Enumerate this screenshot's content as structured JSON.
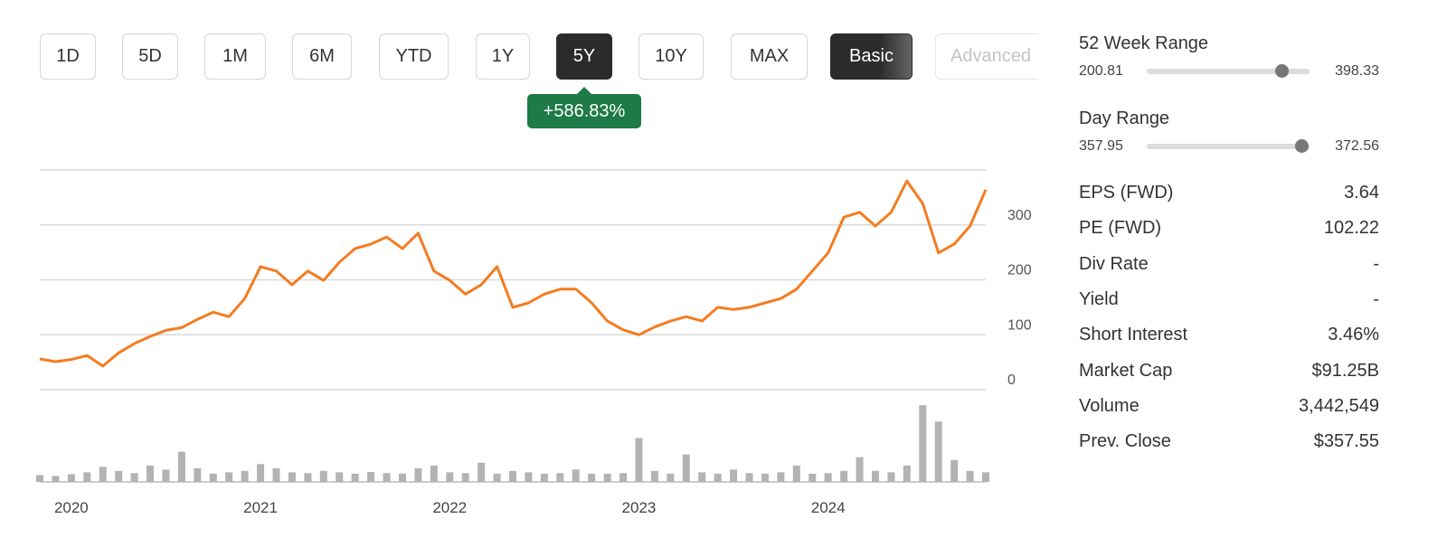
{
  "toolbar": {
    "buttons": [
      {
        "label": "1D"
      },
      {
        "label": "5D"
      },
      {
        "label": "1M"
      },
      {
        "label": "6M"
      },
      {
        "label": "YTD"
      },
      {
        "label": "1Y"
      },
      {
        "label": "5Y",
        "active": true
      },
      {
        "label": "10Y"
      },
      {
        "label": "MAX"
      },
      {
        "label": "Basic",
        "active": true
      },
      {
        "label": "Advanced",
        "disabled": true
      }
    ],
    "change_badge": "+586.83%"
  },
  "stats": {
    "ranges": [
      {
        "label": "52 Week Range",
        "low": 200.81,
        "high": 398.33,
        "marker": 364.8
      },
      {
        "label": "Day Range",
        "low": 357.95,
        "high": 372.56,
        "marker": 371.8
      }
    ],
    "rows": [
      {
        "label": "EPS (FWD)",
        "value": "3.64"
      },
      {
        "label": "PE (FWD)",
        "value": "102.22"
      },
      {
        "label": "Div Rate",
        "value": "-"
      },
      {
        "label": "Yield",
        "value": "-"
      },
      {
        "label": "Short Interest",
        "value": "3.46%"
      },
      {
        "label": "Market Cap",
        "value": "$91.25B"
      },
      {
        "label": "Volume",
        "value": "3,442,549"
      },
      {
        "label": "Prev. Close",
        "value": "$357.55"
      }
    ]
  },
  "chart_data": [
    {
      "type": "line",
      "categories": [
        null,
        null,
        "2020",
        null,
        null,
        null,
        null,
        null,
        null,
        null,
        null,
        null,
        null,
        null,
        "2021",
        null,
        null,
        null,
        null,
        null,
        null,
        null,
        null,
        null,
        null,
        null,
        "2022",
        null,
        null,
        null,
        null,
        null,
        null,
        null,
        null,
        null,
        null,
        null,
        "2023",
        null,
        null,
        null,
        null,
        null,
        null,
        null,
        null,
        null,
        null,
        null,
        "2024",
        null,
        null,
        null,
        null,
        null,
        null,
        null,
        null,
        null,
        null
      ],
      "series": [
        {
          "color": "#f47c20",
          "values": [
            56,
            51,
            55,
            62,
            43,
            67,
            84,
            97,
            108,
            113,
            128,
            141,
            133,
            166,
            224,
            216,
            191,
            216,
            199,
            232,
            257,
            265,
            278,
            257,
            285,
            216,
            199,
            174,
            191,
            224,
            150,
            158,
            174,
            183,
            183,
            158,
            125,
            109,
            100,
            114,
            125,
            133,
            125,
            150,
            146,
            150,
            158,
            166,
            183,
            216,
            249,
            314,
            323,
            298,
            323,
            380,
            339,
            249,
            265,
            298,
            364
          ]
        }
      ],
      "ylim": [
        0,
        400
      ],
      "yticks": [
        0,
        100,
        200,
        300
      ],
      "grid": true
    },
    {
      "type": "bar",
      "color": "#b3b3b3",
      "ylim": [
        0,
        30
      ],
      "values": [
        2.5,
        2.2,
        2.8,
        3.5,
        5.5,
        4,
        3.2,
        6,
        4.5,
        11,
        5,
        3,
        3.5,
        4,
        6.5,
        5,
        3.5,
        3.2,
        4,
        3.5,
        3,
        3.6,
        3.2,
        3,
        5,
        6,
        3.5,
        3.2,
        7,
        3,
        4,
        3.5,
        3,
        3.2,
        4.5,
        3,
        3,
        3.2,
        16,
        4,
        3,
        10,
        3.5,
        3,
        4.5,
        3.2,
        3,
        3.5,
        6,
        3,
        3.2,
        4,
        9,
        4,
        3.5,
        6,
        28,
        22,
        8,
        4,
        3.5
      ]
    }
  ]
}
